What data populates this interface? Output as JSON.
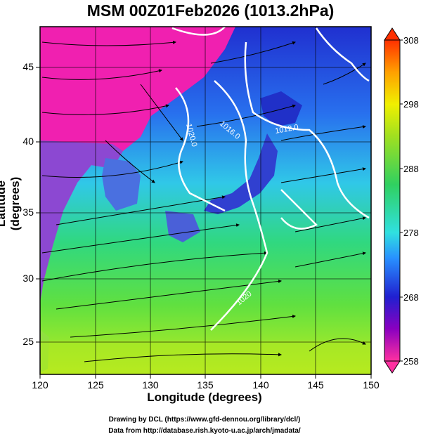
{
  "header": {
    "title": "MSM 00Z01Feb2026 (1013.2hPa)"
  },
  "axes": {
    "xlabel": "Longitude (degrees)",
    "ylabel": "Latitude  (degrees)",
    "xticks": [
      "120",
      "125",
      "130",
      "135",
      "140",
      "145",
      "150"
    ],
    "yticks": [
      "25",
      "30",
      "35",
      "40",
      "45"
    ],
    "xlim": [
      120,
      150
    ],
    "ylim": [
      22.4,
      47.6
    ]
  },
  "colorbar": {
    "ticks": [
      "308",
      "298",
      "288",
      "278",
      "268",
      "258"
    ],
    "range": [
      258,
      308
    ],
    "colors": [
      "#ff33aa",
      "#8a00c0",
      "#2020d0",
      "#2890ff",
      "#30e0e0",
      "#30d060",
      "#a0e020",
      "#f0f000",
      "#ffa000",
      "#ff3000"
    ]
  },
  "contours": [
    {
      "label": "1020.0"
    },
    {
      "label": "1016.0"
    },
    {
      "label": "1012.0"
    },
    {
      "label": "1020"
    }
  ],
  "footer": {
    "line1": "Drawing by DCL (https://www.gfd-dennou.org/library/dcl/)",
    "line2": "Data from http://database.rish.kyoto-u.ac.jp/arch/jmadata/"
  },
  "chart_data": {
    "type": "heatmap",
    "title": "MSM 00Z01Feb2026 (1013.2hPa)",
    "xlabel": "Longitude (degrees)",
    "ylabel": "Latitude  (degrees)",
    "xlim": [
      120,
      150
    ],
    "ylim": [
      22.4,
      47.6
    ],
    "color_range": [
      258,
      308
    ],
    "colorbar_ticks": [
      258,
      268,
      278,
      288,
      298,
      308
    ],
    "overlays": [
      "streamlines",
      "isobars",
      "coastlines",
      "grid"
    ],
    "isobar_labels": [
      "1020.0",
      "1016.0",
      "1012.0",
      "1020"
    ]
  }
}
